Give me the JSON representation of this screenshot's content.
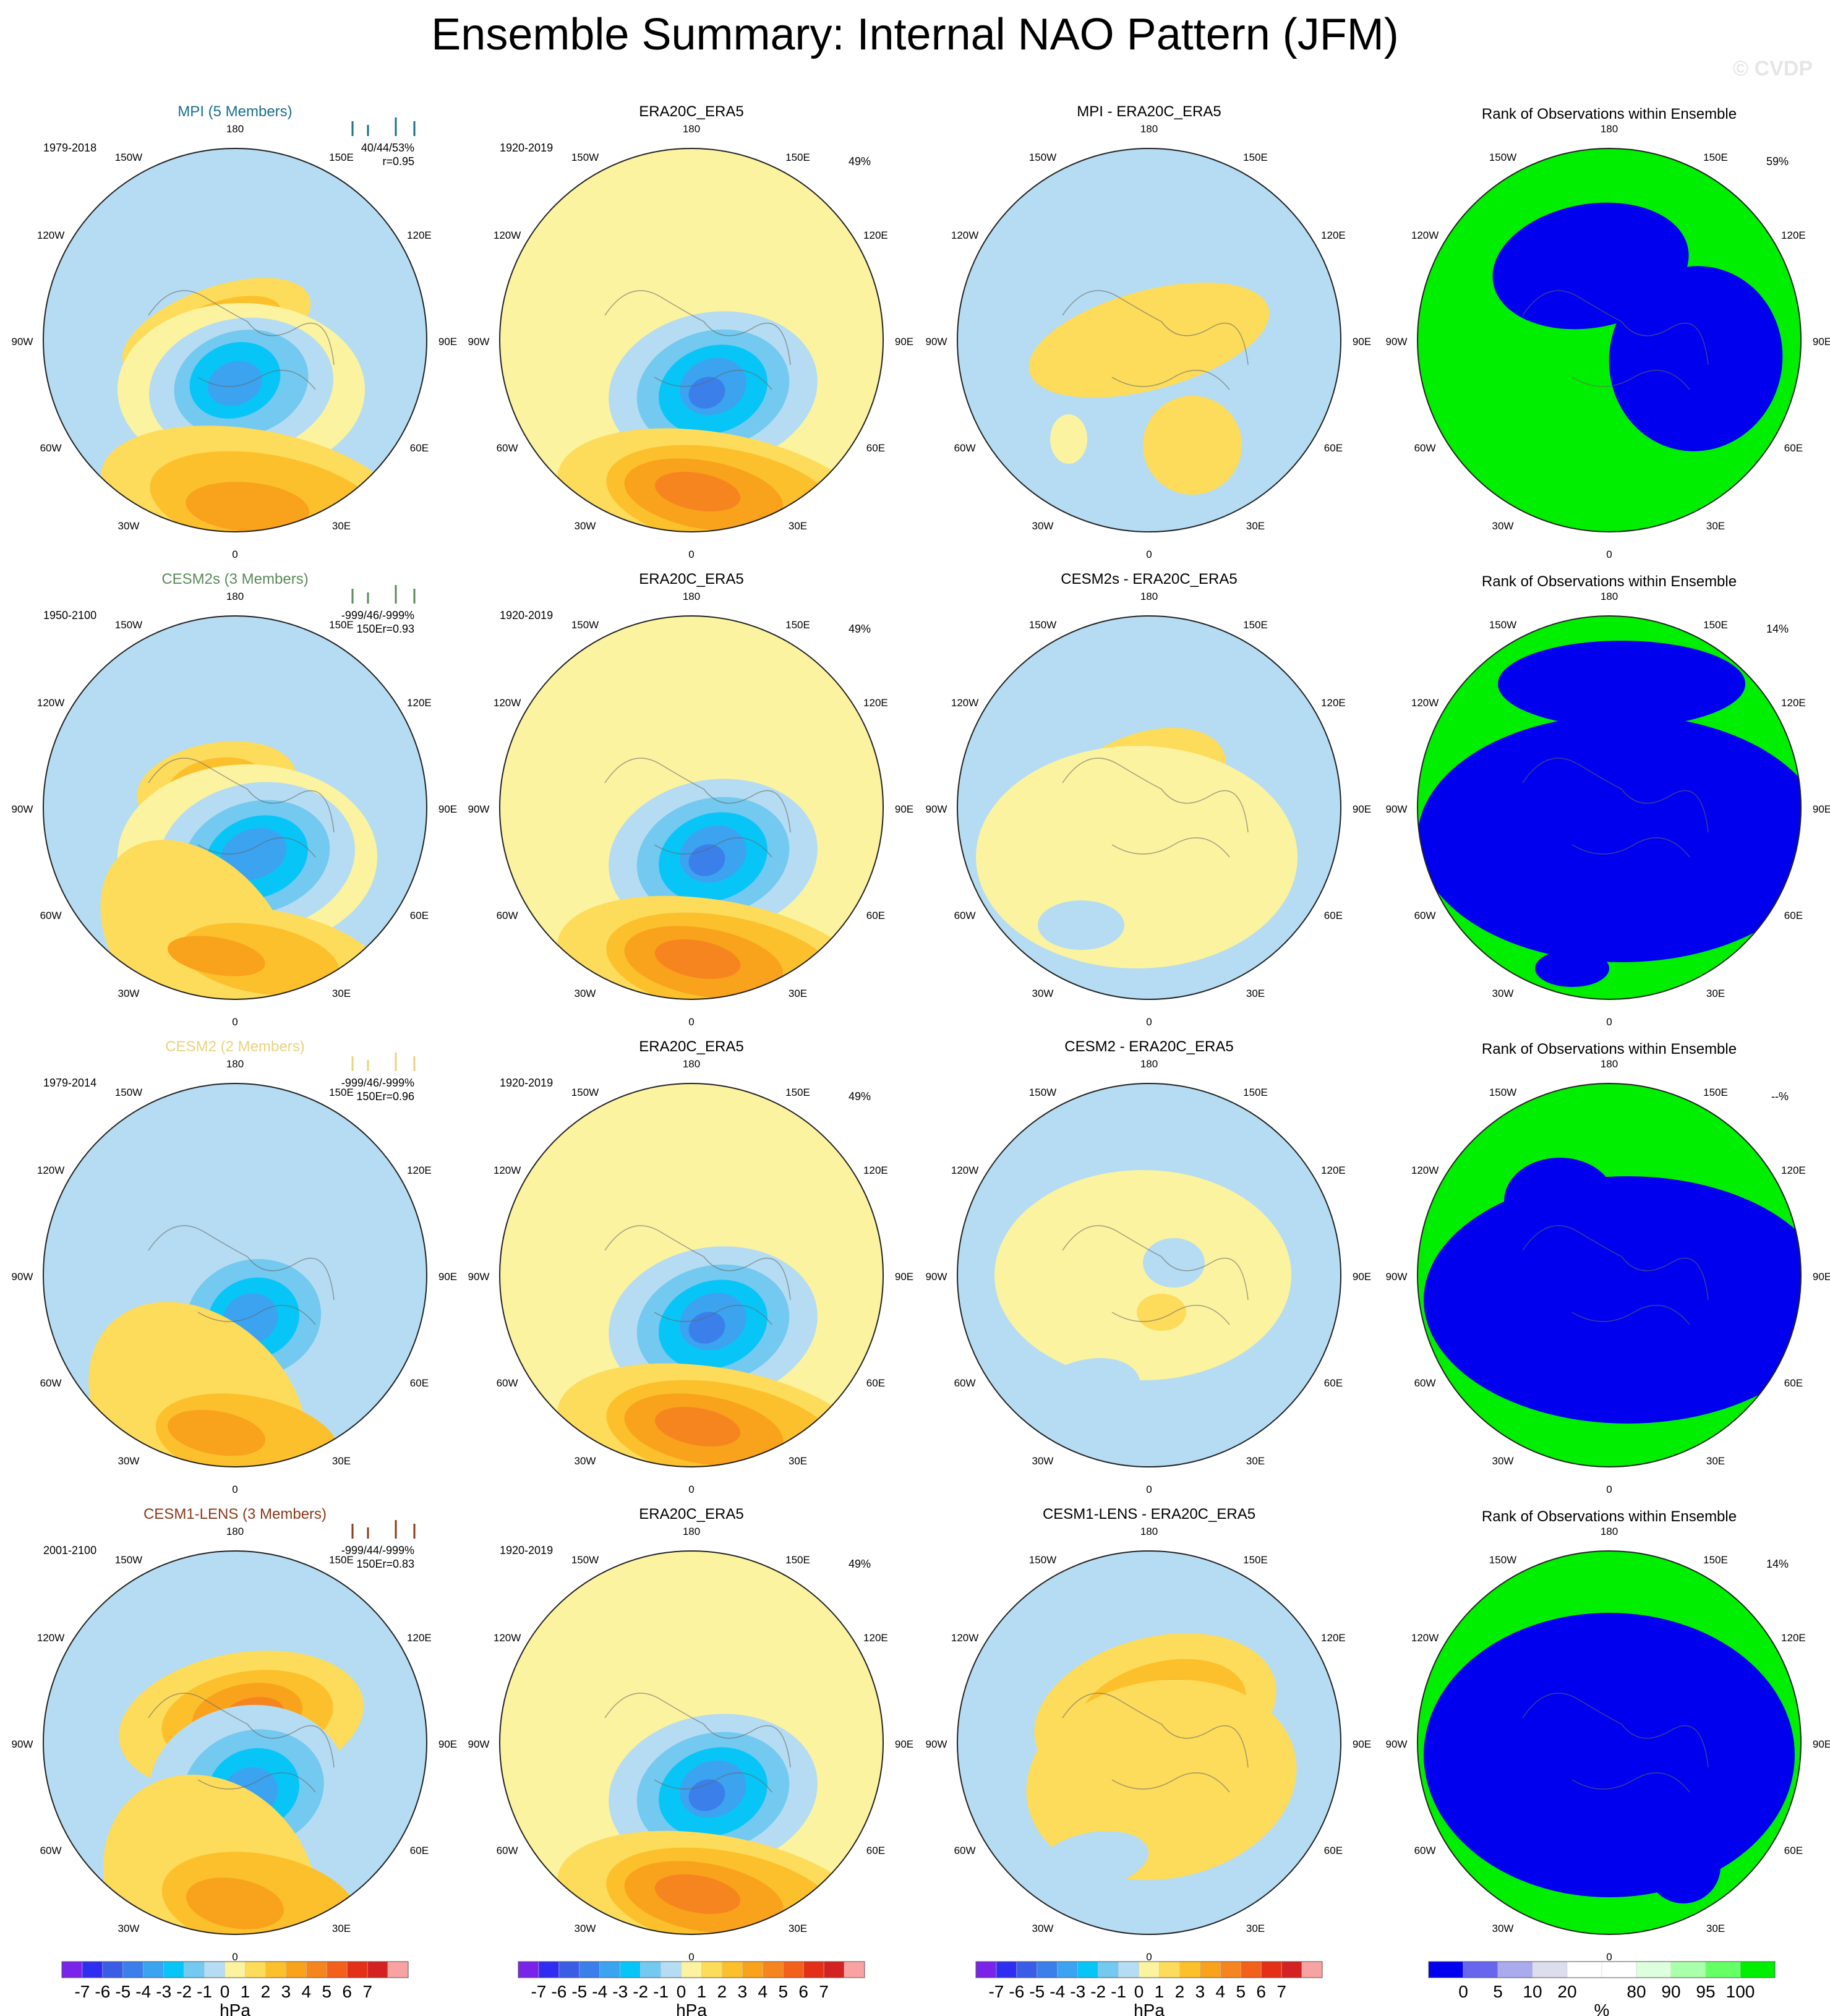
{
  "title": "Ensemble Summary: Internal NAO Pattern (JFM)",
  "watermark": "© CVDP",
  "longitude_labels": [
    "180",
    "150E",
    "120E",
    "90E",
    "60E",
    "30E",
    "0",
    "30W",
    "60W",
    "90W",
    "120W",
    "150W"
  ],
  "colors": {
    "pressure_levels": [
      "#7a24ea",
      "#2f2ef0",
      "#3a5de6",
      "#3a7fea",
      "#3ba3f0",
      "#08c5f8",
      "#73c9f0",
      "#b5dcf2",
      "#fbf3a0",
      "#fddb5b",
      "#fcc02c",
      "#f9a21c",
      "#f6851f",
      "#f2601b",
      "#e43017",
      "#d42222",
      "#f9a2a3"
    ],
    "rank_levels": [
      "#0000ee",
      "#6666ee",
      "#aaaaee",
      "#ddddee",
      "#ffffff",
      "#ffffff",
      "#ddffdd",
      "#aaffaa",
      "#66ff66",
      "#00ee00"
    ],
    "mpi_title": "#1a6e8e",
    "cesm2s_title": "#5a8a5a",
    "cesm2_title": "#e8d37e",
    "cesm1_title": "#8a3a1a"
  },
  "rows": [
    {
      "model": {
        "title": "MPI (5 Members)",
        "years": "1979-2018",
        "stats1": "40/44/53%",
        "stats2": "r=0.95",
        "color": "#1a6e8e"
      },
      "obs": {
        "title": "ERA20C_ERA5",
        "years": "1920-2019",
        "pct": "49%"
      },
      "diff": {
        "title": "MPI - ERA20C_ERA5"
      },
      "rank": {
        "title": "Rank of Observations within Ensemble",
        "pct": "59%"
      }
    },
    {
      "model": {
        "title": "CESM2s (3 Members)",
        "years": "1950-2100",
        "stats1": "-999/46/-999%",
        "stats2": "150Er=0.93",
        "color": "#5a8a5a"
      },
      "obs": {
        "title": "ERA20C_ERA5",
        "years": "1920-2019",
        "pct": "49%"
      },
      "diff": {
        "title": "CESM2s - ERA20C_ERA5"
      },
      "rank": {
        "title": "Rank of Observations within Ensemble",
        "pct": "14%"
      }
    },
    {
      "model": {
        "title": "CESM2 (2 Members)",
        "years": "1979-2014",
        "stats1": "-999/46/-999%",
        "stats2": "150Er=0.96",
        "color": "#e8d37e"
      },
      "obs": {
        "title": "ERA20C_ERA5",
        "years": "1920-2019",
        "pct": "49%"
      },
      "diff": {
        "title": "CESM2 - ERA20C_ERA5"
      },
      "rank": {
        "title": "Rank of Observations within Ensemble",
        "pct": "--%"
      }
    },
    {
      "model": {
        "title": "CESM1-LENS (3 Members)",
        "years": "2001-2100",
        "stats1": "-999/44/-999%",
        "stats2": "150Er=0.83",
        "color": "#8a3a1a"
      },
      "obs": {
        "title": "ERA20C_ERA5",
        "years": "1920-2019",
        "pct": "49%"
      },
      "diff": {
        "title": "CESM1-LENS - ERA20C_ERA5"
      },
      "rank": {
        "title": "Rank of Observations within Ensemble",
        "pct": "14%"
      }
    }
  ],
  "colorbars": {
    "pressure_ticks": [
      "-7",
      "-6",
      "-5",
      "-4",
      "-3",
      "-2",
      "-1",
      "0",
      "1",
      "2",
      "3",
      "4",
      "5",
      "6",
      "7"
    ],
    "pressure_unit": "hPa",
    "rank_ticks": [
      "0",
      "5",
      "10",
      "20",
      "80",
      "90",
      "95",
      "100"
    ],
    "rank_unit": "%"
  },
  "chart_data": [
    {
      "type": "heatmap",
      "title": "MPI (5 Members)",
      "projection": "north polar stereographic",
      "units": "hPa",
      "range": [
        -7,
        7
      ],
      "description_values": {
        "low_center_min": -6,
        "high_atlantic_max": 4,
        "high_pacific_max": 2
      }
    },
    {
      "type": "heatmap",
      "title": "ERA20C_ERA5",
      "units": "hPa",
      "range": [
        -7,
        7
      ],
      "pattern_correlation_pct": "49%"
    },
    {
      "type": "heatmap",
      "title": "MPI - ERA20C_ERA5",
      "units": "hPa",
      "range": [
        -7,
        7
      ]
    },
    {
      "type": "heatmap",
      "title": "Rank of Observations within Ensemble",
      "units": "%",
      "levels": [
        0,
        5,
        10,
        20,
        80,
        90,
        95,
        100
      ],
      "value": "59%"
    },
    {
      "type": "heatmap",
      "title": "CESM2s (3 Members)",
      "units": "hPa",
      "range": [
        -7,
        7
      ]
    },
    {
      "type": "heatmap",
      "title": "CESM2s - ERA20C_ERA5",
      "units": "hPa",
      "range": [
        -7,
        7
      ]
    },
    {
      "type": "heatmap",
      "title": "Rank of Observations within Ensemble",
      "units": "%",
      "value": "14%"
    },
    {
      "type": "heatmap",
      "title": "CESM2 (2 Members)",
      "units": "hPa",
      "range": [
        -7,
        7
      ]
    },
    {
      "type": "heatmap",
      "title": "CESM2 - ERA20C_ERA5",
      "units": "hPa",
      "range": [
        -7,
        7
      ]
    },
    {
      "type": "heatmap",
      "title": "Rank of Observations within Ensemble",
      "units": "%",
      "value": "--%"
    },
    {
      "type": "heatmap",
      "title": "CESM1-LENS (3 Members)",
      "units": "hPa",
      "range": [
        -7,
        7
      ]
    },
    {
      "type": "heatmap",
      "title": "CESM1-LENS - ERA20C_ERA5",
      "units": "hPa",
      "range": [
        -7,
        7
      ]
    },
    {
      "type": "heatmap",
      "title": "Rank of Observations within Ensemble",
      "units": "%",
      "value": "14%"
    }
  ]
}
